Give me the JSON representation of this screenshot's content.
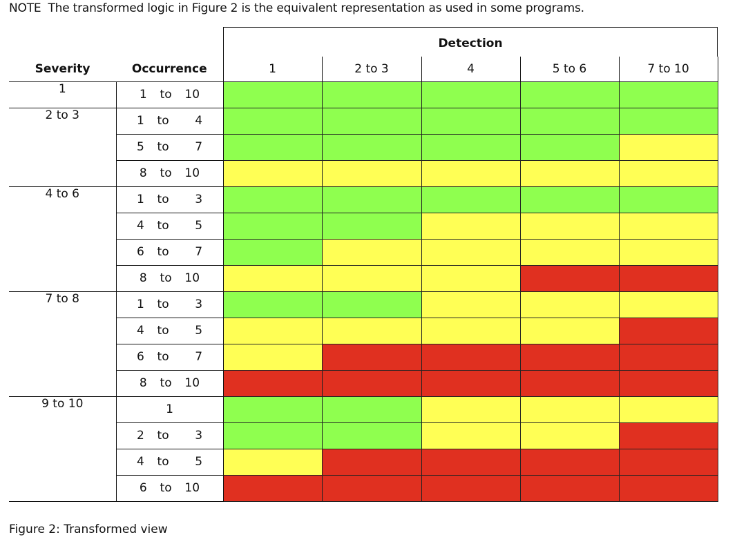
{
  "note": {
    "label": "NOTE",
    "text": "The transformed logic in Figure 2 is the equivalent representation as used in some programs."
  },
  "table": {
    "detection_title": "Detection",
    "headers": {
      "severity": "Severity",
      "occurrence": "Occurrence"
    },
    "detection_columns": [
      "1",
      "2 to 3",
      "4",
      "5 to 6",
      "7 to 10"
    ],
    "groups": [
      {
        "severity": "1",
        "rows": [
          {
            "occurrence": "1  to  10",
            "ratings": [
              "green",
              "green",
              "green",
              "green",
              "green"
            ]
          }
        ]
      },
      {
        "severity": "2 to 3",
        "rows": [
          {
            "occurrence": "1  to    4",
            "ratings": [
              "green",
              "green",
              "green",
              "green",
              "green"
            ]
          },
          {
            "occurrence": "5  to    7",
            "ratings": [
              "green",
              "green",
              "green",
              "green",
              "yellow"
            ]
          },
          {
            "occurrence": "8  to  10",
            "ratings": [
              "yellow",
              "yellow",
              "yellow",
              "yellow",
              "yellow"
            ]
          }
        ]
      },
      {
        "severity": "4 to 6",
        "rows": [
          {
            "occurrence": "1  to    3",
            "ratings": [
              "green",
              "green",
              "green",
              "green",
              "green"
            ]
          },
          {
            "occurrence": "4  to    5",
            "ratings": [
              "green",
              "green",
              "yellow",
              "yellow",
              "yellow"
            ]
          },
          {
            "occurrence": "6  to    7",
            "ratings": [
              "green",
              "yellow",
              "yellow",
              "yellow",
              "yellow"
            ]
          },
          {
            "occurrence": "8  to  10",
            "ratings": [
              "yellow",
              "yellow",
              "yellow",
              "red",
              "red"
            ]
          }
        ]
      },
      {
        "severity": "7 to 8",
        "rows": [
          {
            "occurrence": "1  to    3",
            "ratings": [
              "green",
              "green",
              "yellow",
              "yellow",
              "yellow"
            ]
          },
          {
            "occurrence": "4  to    5",
            "ratings": [
              "yellow",
              "yellow",
              "yellow",
              "yellow",
              "red"
            ]
          },
          {
            "occurrence": "6  to    7",
            "ratings": [
              "yellow",
              "red",
              "red",
              "red",
              "red"
            ]
          },
          {
            "occurrence": "8  to  10",
            "ratings": [
              "red",
              "red",
              "red",
              "red",
              "red"
            ]
          }
        ]
      },
      {
        "severity": "9 to 10",
        "rows": [
          {
            "occurrence": "1",
            "ratings": [
              "green",
              "green",
              "yellow",
              "yellow",
              "yellow"
            ]
          },
          {
            "occurrence": "2  to    3",
            "ratings": [
              "green",
              "green",
              "yellow",
              "yellow",
              "red"
            ]
          },
          {
            "occurrence": "4  to    5",
            "ratings": [
              "yellow",
              "red",
              "red",
              "red",
              "red"
            ]
          },
          {
            "occurrence": "6  to  10",
            "ratings": [
              "red",
              "red",
              "red",
              "red",
              "red"
            ]
          }
        ]
      }
    ]
  },
  "caption": "Figure 2: Transformed view",
  "colors": {
    "green": "#8fff4f",
    "yellow": "#ffff55",
    "red": "#e03020"
  }
}
